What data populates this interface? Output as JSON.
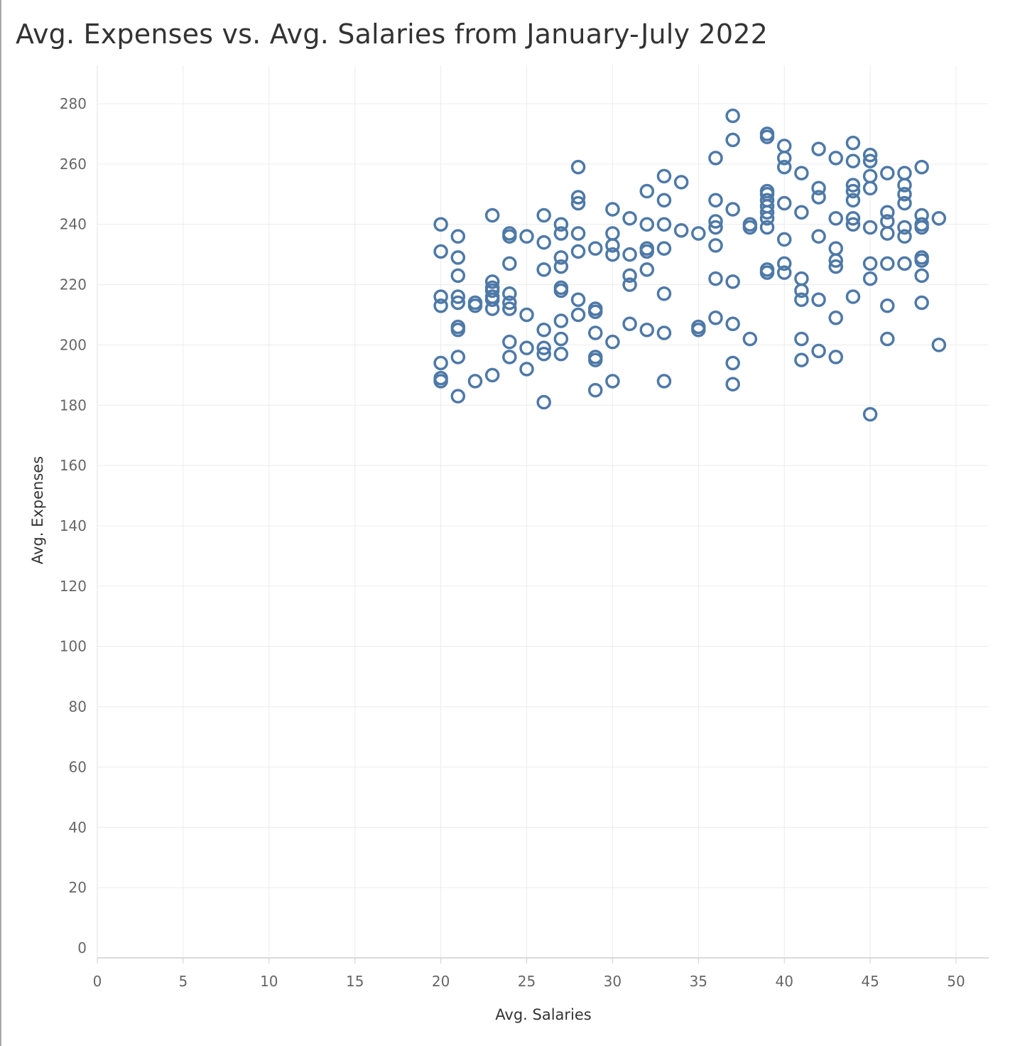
{
  "chart_data": {
    "type": "scatter",
    "title": "Avg. Expenses vs. Avg. Salaries from January-July 2022",
    "xlabel": "Avg. Salaries",
    "ylabel": "Avg. Expenses",
    "xlim": [
      0,
      50
    ],
    "ylim": [
      0,
      290
    ],
    "x_ticks": [
      "0",
      "5",
      "10",
      "15",
      "20",
      "25",
      "30",
      "35",
      "40",
      "45",
      "50"
    ],
    "y_ticks": [
      "0",
      "20",
      "40",
      "60",
      "80",
      "100",
      "120",
      "140",
      "160",
      "180",
      "200",
      "220",
      "240",
      "260",
      "280"
    ],
    "grid": true,
    "marker": "open-circle",
    "color": "#4e79a7",
    "points": [
      [
        20,
        240
      ],
      [
        20,
        231
      ],
      [
        20,
        216
      ],
      [
        20,
        213
      ],
      [
        20,
        194
      ],
      [
        20,
        189
      ],
      [
        20,
        188
      ],
      [
        21,
        236
      ],
      [
        21,
        229
      ],
      [
        21,
        223
      ],
      [
        21,
        216
      ],
      [
        21,
        214
      ],
      [
        21,
        206
      ],
      [
        21,
        205
      ],
      [
        21,
        196
      ],
      [
        21,
        183
      ],
      [
        22,
        214
      ],
      [
        22,
        213
      ],
      [
        22,
        188
      ],
      [
        23,
        243
      ],
      [
        23,
        221
      ],
      [
        23,
        219
      ],
      [
        23,
        218
      ],
      [
        23,
        216
      ],
      [
        23,
        215
      ],
      [
        23,
        212
      ],
      [
        23,
        190
      ],
      [
        24,
        237
      ],
      [
        24,
        236
      ],
      [
        24,
        227
      ],
      [
        24,
        217
      ],
      [
        24,
        214
      ],
      [
        24,
        212
      ],
      [
        24,
        201
      ],
      [
        24,
        196
      ],
      [
        25,
        236
      ],
      [
        25,
        210
      ],
      [
        25,
        199
      ],
      [
        25,
        192
      ],
      [
        26,
        243
      ],
      [
        26,
        234
      ],
      [
        26,
        225
      ],
      [
        26,
        205
      ],
      [
        26,
        199
      ],
      [
        26,
        197
      ],
      [
        26,
        181
      ],
      [
        27,
        240
      ],
      [
        27,
        237
      ],
      [
        27,
        229
      ],
      [
        27,
        226
      ],
      [
        27,
        219
      ],
      [
        27,
        218
      ],
      [
        27,
        208
      ],
      [
        27,
        202
      ],
      [
        27,
        197
      ],
      [
        28,
        259
      ],
      [
        28,
        249
      ],
      [
        28,
        247
      ],
      [
        28,
        237
      ],
      [
        28,
        231
      ],
      [
        28,
        215
      ],
      [
        28,
        210
      ],
      [
        29,
        232
      ],
      [
        29,
        212
      ],
      [
        29,
        211
      ],
      [
        29,
        204
      ],
      [
        29,
        196
      ],
      [
        29,
        195
      ],
      [
        29,
        185
      ],
      [
        30,
        245
      ],
      [
        30,
        237
      ],
      [
        30,
        233
      ],
      [
        30,
        230
      ],
      [
        30,
        201
      ],
      [
        30,
        188
      ],
      [
        31,
        242
      ],
      [
        31,
        230
      ],
      [
        31,
        223
      ],
      [
        31,
        220
      ],
      [
        31,
        207
      ],
      [
        32,
        251
      ],
      [
        32,
        240
      ],
      [
        32,
        232
      ],
      [
        32,
        231
      ],
      [
        32,
        225
      ],
      [
        32,
        205
      ],
      [
        33,
        256
      ],
      [
        33,
        248
      ],
      [
        33,
        240
      ],
      [
        33,
        232
      ],
      [
        33,
        217
      ],
      [
        33,
        204
      ],
      [
        33,
        188
      ],
      [
        34,
        254
      ],
      [
        34,
        238
      ],
      [
        35,
        237
      ],
      [
        35,
        206
      ],
      [
        35,
        205
      ],
      [
        36,
        262
      ],
      [
        36,
        248
      ],
      [
        36,
        241
      ],
      [
        36,
        239
      ],
      [
        36,
        233
      ],
      [
        36,
        222
      ],
      [
        36,
        209
      ],
      [
        37,
        276
      ],
      [
        37,
        268
      ],
      [
        37,
        245
      ],
      [
        37,
        221
      ],
      [
        37,
        207
      ],
      [
        37,
        194
      ],
      [
        37,
        187
      ],
      [
        38,
        240
      ],
      [
        38,
        239
      ],
      [
        38,
        202
      ],
      [
        39,
        270
      ],
      [
        39,
        269
      ],
      [
        39,
        251
      ],
      [
        39,
        250
      ],
      [
        39,
        248
      ],
      [
        39,
        246
      ],
      [
        39,
        244
      ],
      [
        39,
        242
      ],
      [
        39,
        239
      ],
      [
        39,
        225
      ],
      [
        39,
        224
      ],
      [
        40,
        266
      ],
      [
        40,
        262
      ],
      [
        40,
        259
      ],
      [
        40,
        247
      ],
      [
        40,
        235
      ],
      [
        40,
        227
      ],
      [
        40,
        224
      ],
      [
        41,
        257
      ],
      [
        41,
        244
      ],
      [
        41,
        222
      ],
      [
        41,
        218
      ],
      [
        41,
        215
      ],
      [
        41,
        202
      ],
      [
        41,
        195
      ],
      [
        42,
        265
      ],
      [
        42,
        252
      ],
      [
        42,
        249
      ],
      [
        42,
        236
      ],
      [
        42,
        215
      ],
      [
        42,
        198
      ],
      [
        43,
        262
      ],
      [
        43,
        242
      ],
      [
        43,
        232
      ],
      [
        43,
        228
      ],
      [
        43,
        226
      ],
      [
        43,
        209
      ],
      [
        43,
        196
      ],
      [
        44,
        267
      ],
      [
        44,
        261
      ],
      [
        44,
        253
      ],
      [
        44,
        251
      ],
      [
        44,
        248
      ],
      [
        44,
        242
      ],
      [
        44,
        240
      ],
      [
        44,
        216
      ],
      [
        45,
        263
      ],
      [
        45,
        261
      ],
      [
        45,
        256
      ],
      [
        45,
        252
      ],
      [
        45,
        239
      ],
      [
        45,
        227
      ],
      [
        45,
        222
      ],
      [
        45,
        177
      ],
      [
        46,
        257
      ],
      [
        46,
        244
      ],
      [
        46,
        241
      ],
      [
        46,
        237
      ],
      [
        46,
        227
      ],
      [
        46,
        213
      ],
      [
        46,
        202
      ],
      [
        47,
        257
      ],
      [
        47,
        253
      ],
      [
        47,
        250
      ],
      [
        47,
        247
      ],
      [
        47,
        239
      ],
      [
        47,
        236
      ],
      [
        47,
        227
      ],
      [
        48,
        259
      ],
      [
        48,
        243
      ],
      [
        48,
        240
      ],
      [
        48,
        239
      ],
      [
        48,
        229
      ],
      [
        48,
        228
      ],
      [
        48,
        223
      ],
      [
        48,
        214
      ],
      [
        49,
        242
      ],
      [
        49,
        200
      ]
    ]
  }
}
